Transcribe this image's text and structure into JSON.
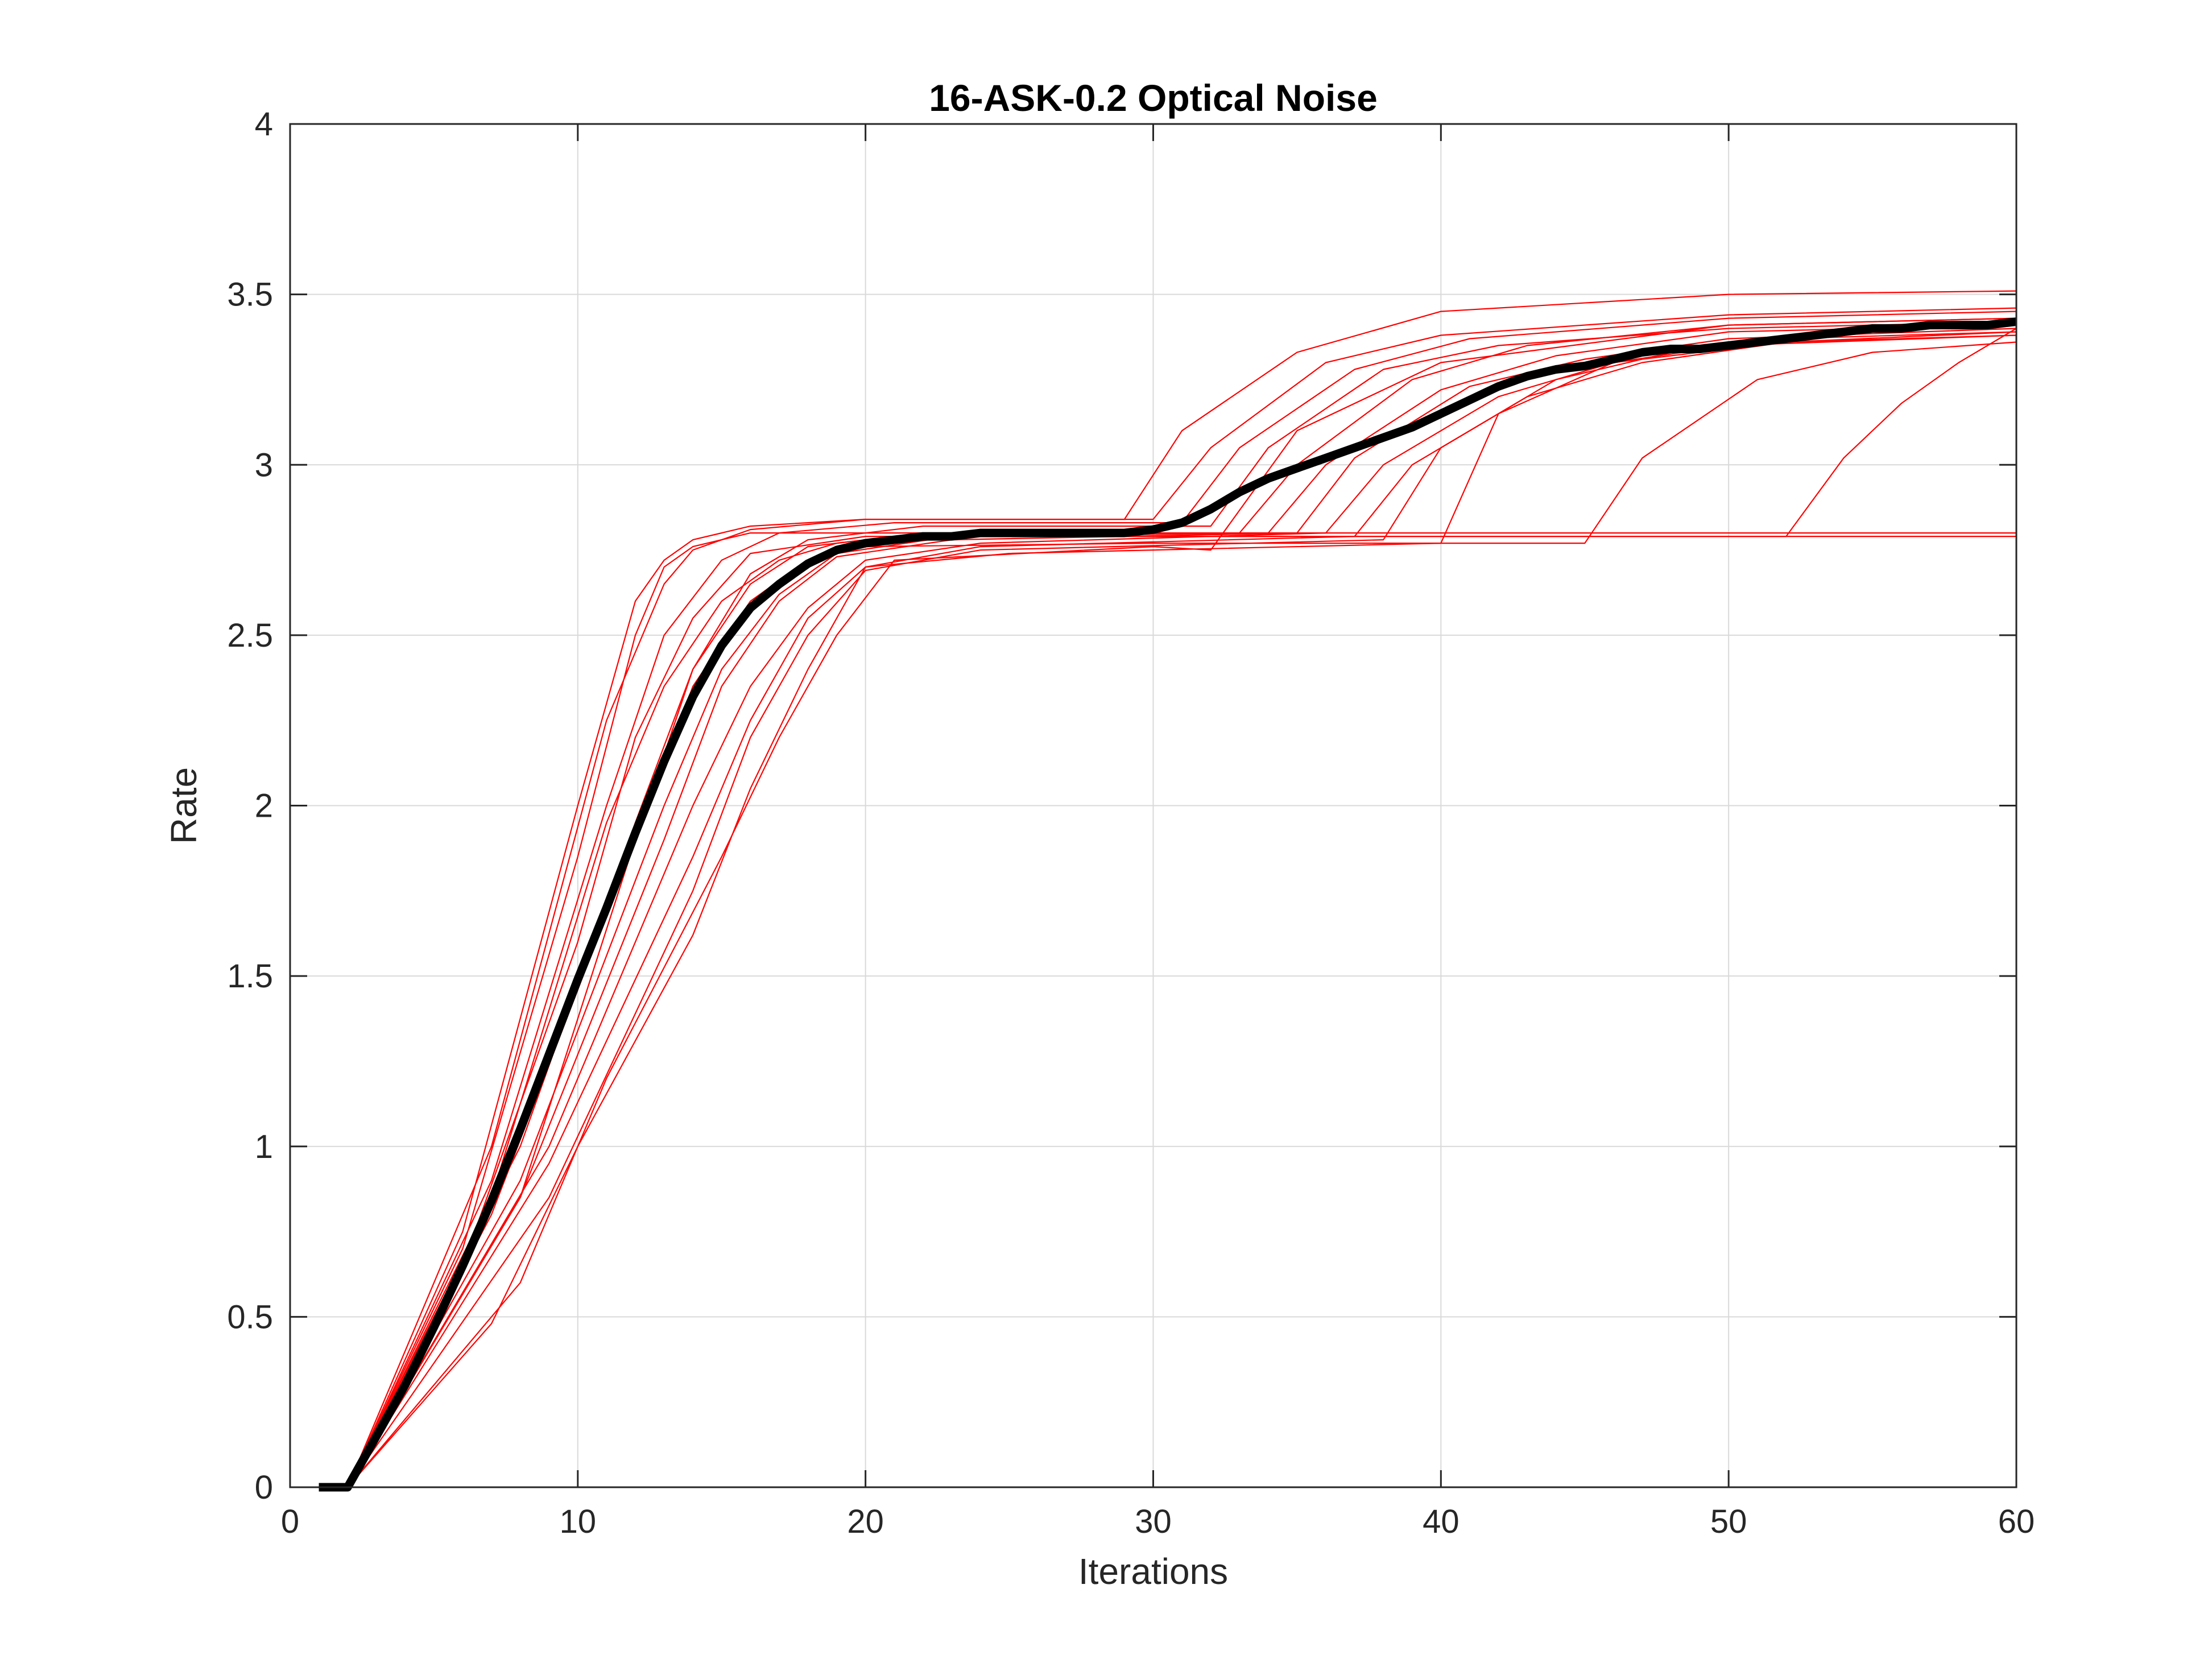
{
  "chart_data": {
    "type": "line",
    "title": "16-ASK-0.2 Optical Noise",
    "xlabel": "Iterations",
    "ylabel": "Rate",
    "xlim": [
      0,
      60
    ],
    "ylim": [
      0,
      4
    ],
    "xticks": [
      0,
      10,
      20,
      30,
      40,
      50,
      60
    ],
    "xtick_labels": [
      "0",
      "10",
      "20",
      "30",
      "40",
      "50",
      "60"
    ],
    "yticks": [
      0,
      0.5,
      1,
      1.5,
      2,
      2.5,
      3,
      3.5,
      4
    ],
    "ytick_labels": [
      "0",
      "0.5",
      "1",
      "1.5",
      "2",
      "2.5",
      "3",
      "3.5",
      "4"
    ],
    "grid": true,
    "legend": "none",
    "colors": {
      "runs": "#ff0000",
      "mean": "#000000",
      "grid": "#d9d9d9",
      "axes": "#262626"
    },
    "mean_series": {
      "x": [
        1,
        2,
        3,
        4,
        5,
        6,
        7,
        8,
        9,
        10,
        11,
        12,
        13,
        14,
        15,
        16,
        17,
        18,
        19,
        20,
        21,
        22,
        23,
        24,
        25,
        26,
        27,
        28,
        29,
        30,
        31,
        32,
        33,
        34,
        35,
        36,
        37,
        38,
        39,
        40,
        41,
        42,
        43,
        44,
        45,
        46,
        47,
        48,
        49,
        50,
        51,
        52,
        53,
        54,
        55,
        56,
        57,
        58,
        59,
        60
      ],
      "y": [
        0,
        0,
        0.15,
        0.3,
        0.47,
        0.65,
        0.84,
        1.05,
        1.27,
        1.49,
        1.7,
        1.92,
        2.13,
        2.32,
        2.47,
        2.58,
        2.65,
        2.71,
        2.75,
        2.77,
        2.78,
        2.79,
        2.79,
        2.8,
        2.8,
        2.8,
        2.8,
        2.8,
        2.8,
        2.81,
        2.83,
        2.87,
        2.92,
        2.96,
        2.99,
        3.02,
        3.05,
        3.08,
        3.11,
        3.15,
        3.19,
        3.23,
        3.26,
        3.28,
        3.29,
        3.31,
        3.33,
        3.34,
        3.34,
        3.35,
        3.36,
        3.37,
        3.38,
        3.39,
        3.4,
        3.4,
        3.41,
        3.41,
        3.41,
        3.42
      ]
    },
    "series": [
      {
        "x": [
          1,
          2,
          6,
          10,
          12,
          13,
          14,
          16,
          20,
          60
        ],
        "y": [
          0,
          0,
          0.7,
          1.85,
          2.5,
          2.7,
          2.76,
          2.8,
          2.8,
          2.8
        ]
      },
      {
        "x": [
          1,
          2,
          6,
          10,
          12,
          13,
          14,
          16,
          20,
          29,
          31,
          35,
          40,
          50,
          60
        ],
        "y": [
          0,
          0,
          0.75,
          2.0,
          2.6,
          2.72,
          2.78,
          2.82,
          2.84,
          2.84,
          3.1,
          3.33,
          3.45,
          3.5,
          3.51
        ]
      },
      {
        "x": [
          1,
          2,
          7,
          11,
          13,
          14,
          16,
          20,
          30,
          32,
          36,
          40,
          50,
          60
        ],
        "y": [
          0,
          0,
          1.0,
          2.25,
          2.65,
          2.75,
          2.81,
          2.84,
          2.84,
          3.05,
          3.3,
          3.38,
          3.44,
          3.46
        ]
      },
      {
        "x": [
          1,
          2,
          7,
          11,
          13,
          15,
          17,
          21,
          31,
          33,
          37,
          41,
          50,
          60
        ],
        "y": [
          0,
          0,
          0.9,
          2.0,
          2.5,
          2.72,
          2.8,
          2.83,
          2.83,
          3.05,
          3.28,
          3.37,
          3.43,
          3.45
        ]
      },
      {
        "x": [
          1,
          2,
          7,
          12,
          14,
          16,
          18,
          22,
          32,
          34,
          38,
          42,
          50,
          60
        ],
        "y": [
          0,
          0,
          0.8,
          1.9,
          2.4,
          2.68,
          2.78,
          2.82,
          2.82,
          3.05,
          3.28,
          3.35,
          3.4,
          3.42
        ]
      },
      {
        "x": [
          1,
          2,
          8,
          12,
          14,
          16,
          18,
          22,
          33,
          35,
          39,
          43,
          50,
          60
        ],
        "y": [
          0,
          0,
          1.0,
          1.95,
          2.4,
          2.65,
          2.76,
          2.8,
          2.8,
          3.0,
          3.25,
          3.35,
          3.41,
          3.43
        ]
      },
      {
        "x": [
          1,
          2,
          8,
          13,
          15,
          17,
          19,
          23,
          34,
          36,
          40,
          44,
          50,
          60
        ],
        "y": [
          0,
          0,
          0.9,
          2.0,
          2.4,
          2.62,
          2.74,
          2.79,
          2.8,
          3.0,
          3.22,
          3.32,
          3.39,
          3.41
        ]
      },
      {
        "x": [
          1,
          2,
          8,
          13,
          15,
          17,
          19,
          23,
          35,
          37,
          41,
          45,
          50,
          60
        ],
        "y": [
          0,
          0,
          0.85,
          1.9,
          2.35,
          2.6,
          2.73,
          2.78,
          2.8,
          3.02,
          3.23,
          3.31,
          3.37,
          3.4
        ]
      },
      {
        "x": [
          1,
          2,
          9,
          14,
          16,
          18,
          20,
          24,
          36,
          38,
          42,
          46,
          52,
          60
        ],
        "y": [
          0,
          0,
          1.0,
          2.0,
          2.35,
          2.58,
          2.72,
          2.77,
          2.8,
          3.0,
          3.2,
          3.3,
          3.36,
          3.39
        ]
      },
      {
        "x": [
          1,
          2,
          9,
          14,
          16,
          18,
          20,
          24,
          37,
          39,
          43,
          47,
          52,
          60
        ],
        "y": [
          0,
          0,
          0.95,
          1.85,
          2.25,
          2.55,
          2.7,
          2.76,
          2.79,
          3.0,
          3.2,
          3.3,
          3.36,
          3.38
        ]
      },
      {
        "x": [
          1,
          2,
          9,
          14,
          16,
          18,
          20,
          24,
          38,
          40,
          44,
          48,
          52,
          60
        ],
        "y": [
          0,
          0,
          0.85,
          1.75,
          2.2,
          2.5,
          2.69,
          2.75,
          2.78,
          3.05,
          3.25,
          3.33,
          3.37,
          3.39
        ]
      },
      {
        "x": [
          1,
          2,
          7,
          10,
          14,
          16,
          18,
          20,
          25,
          40,
          42,
          46,
          50,
          60
        ],
        "y": [
          0,
          0,
          0.48,
          1.0,
          1.62,
          2.05,
          2.4,
          2.7,
          2.74,
          2.77,
          3.15,
          3.3,
          3.35,
          3.38
        ]
      },
      {
        "x": [
          1,
          2,
          8,
          11,
          15,
          17,
          19,
          21,
          30,
          32,
          35,
          40,
          50,
          60
        ],
        "y": [
          0,
          0,
          0.6,
          1.2,
          1.85,
          2.2,
          2.5,
          2.72,
          2.76,
          2.75,
          3.1,
          3.3,
          3.41,
          3.43
        ]
      },
      {
        "x": [
          1,
          2,
          8,
          12,
          14,
          16,
          18,
          20,
          30,
          45,
          47,
          51,
          55,
          60
        ],
        "y": [
          0,
          0,
          0.85,
          1.9,
          2.35,
          2.6,
          2.72,
          2.76,
          2.77,
          2.77,
          3.02,
          3.25,
          3.33,
          3.36
        ]
      },
      {
        "x": [
          1,
          2,
          7,
          11,
          13,
          15,
          17,
          19,
          21,
          30,
          40,
          52,
          54,
          56,
          58,
          60
        ],
        "y": [
          0,
          0,
          0.85,
          1.95,
          2.35,
          2.6,
          2.72,
          2.77,
          2.79,
          2.79,
          2.79,
          2.79,
          3.02,
          3.18,
          3.3,
          3.4
        ]
      },
      {
        "x": [
          1,
          2,
          6,
          10,
          12,
          14,
          16,
          20,
          30,
          60
        ],
        "y": [
          0,
          0,
          0.65,
          1.6,
          2.2,
          2.55,
          2.74,
          2.79,
          2.79,
          2.79
        ]
      }
    ]
  }
}
